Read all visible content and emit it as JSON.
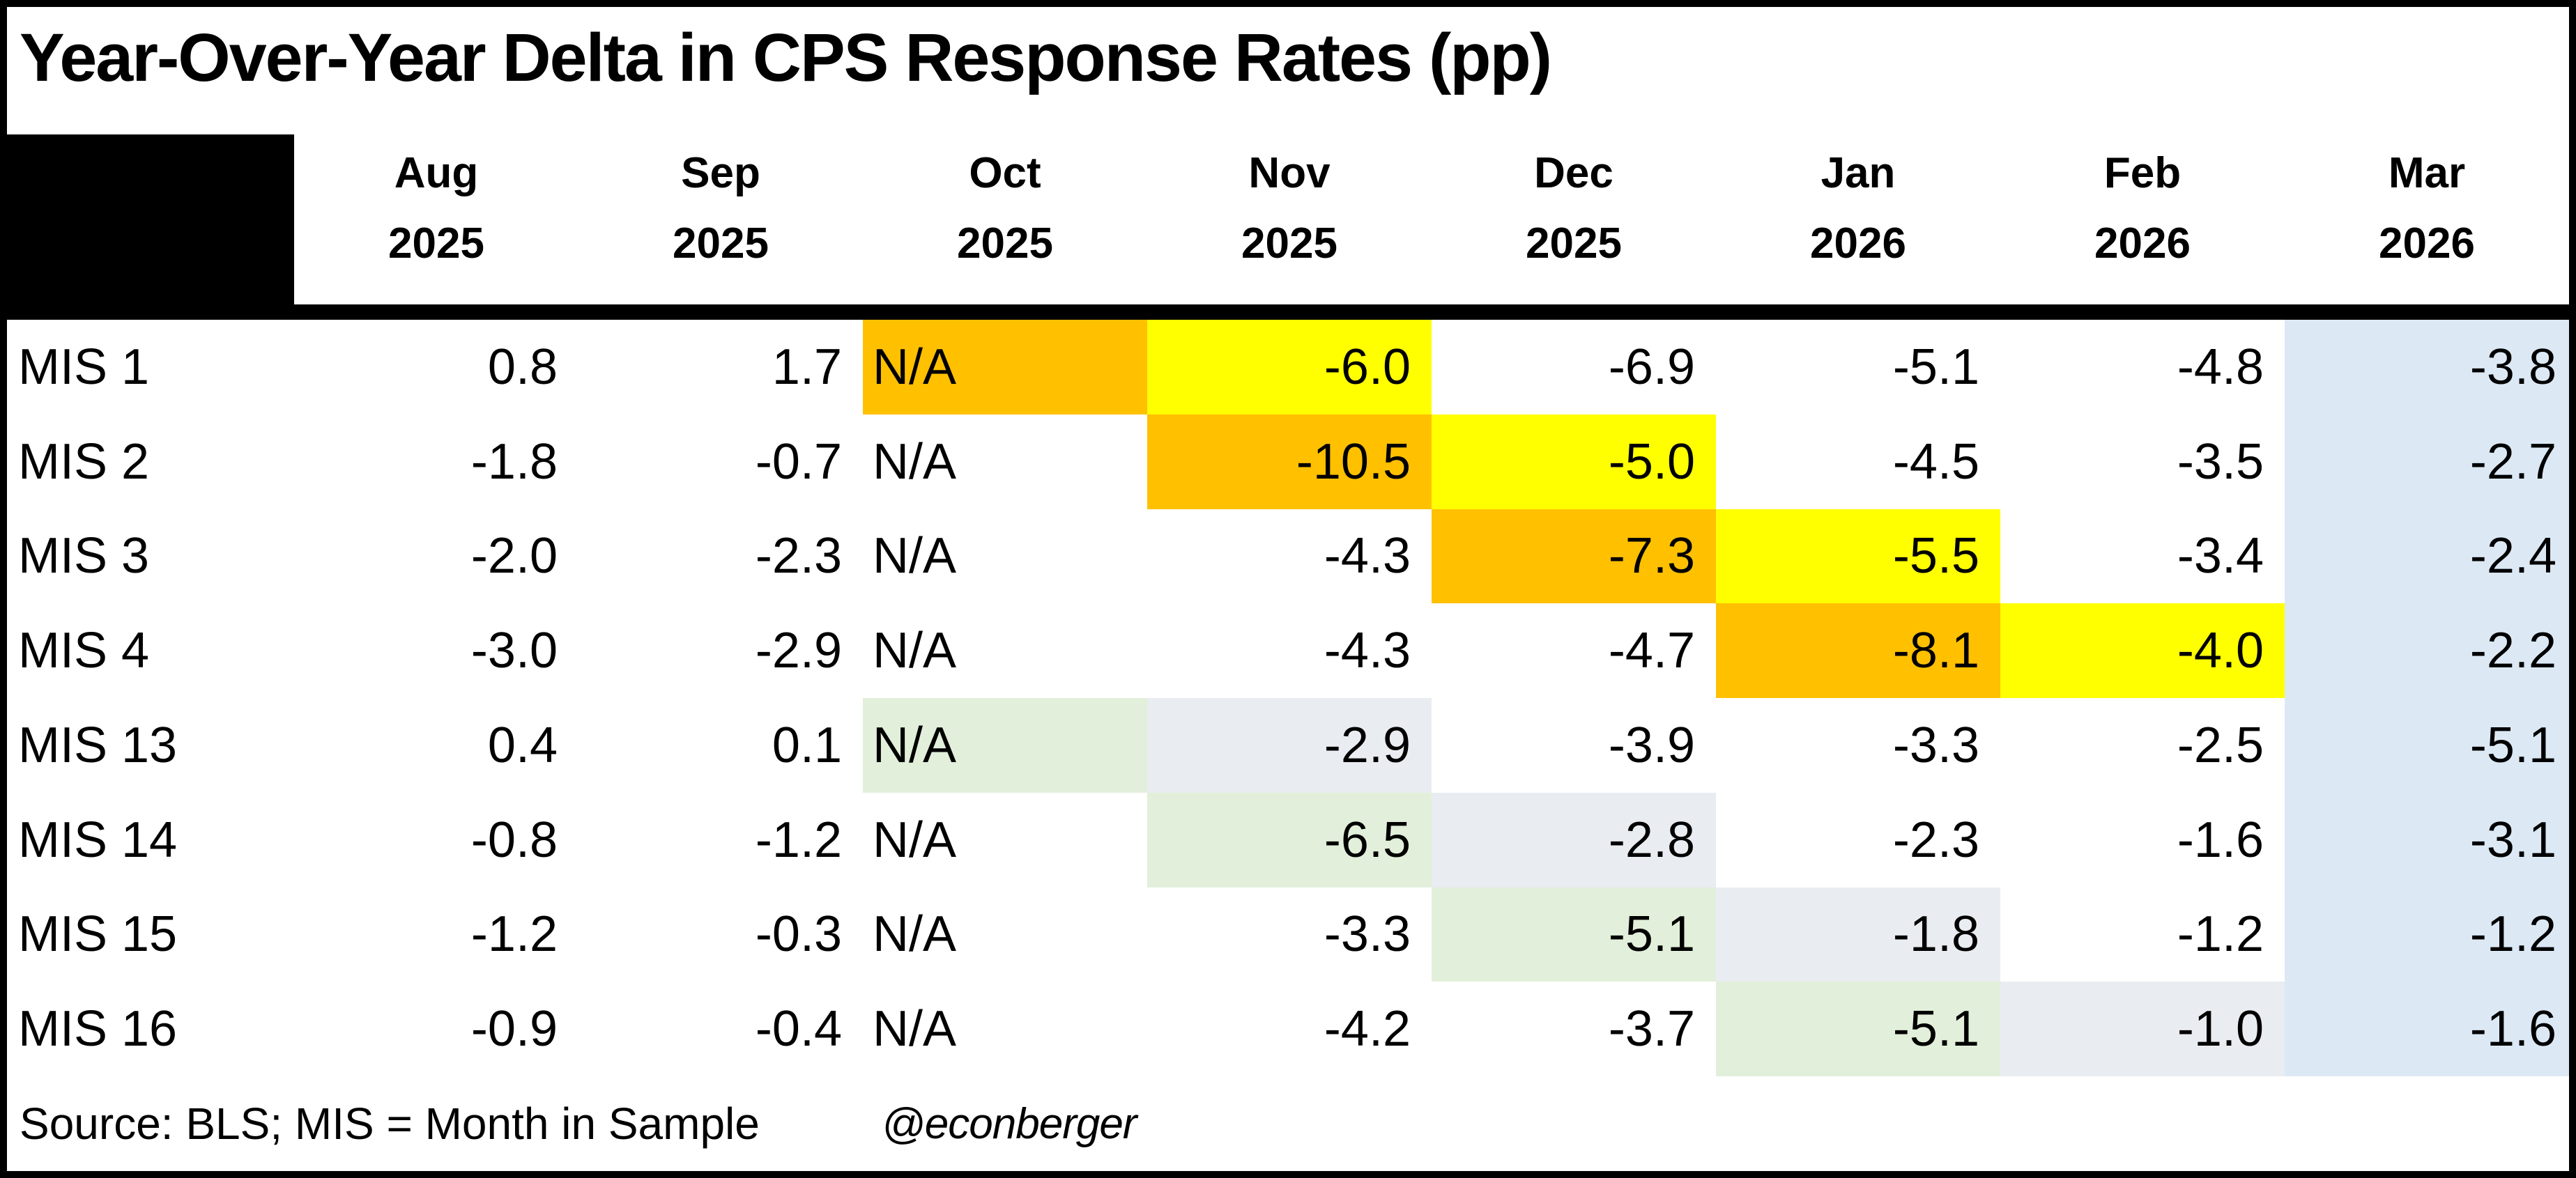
{
  "title": "Year-Over-Year Delta in CPS Response Rates (pp)",
  "footer": {
    "source": "Source: BLS; MIS = Month in Sample",
    "handle": "@econberger"
  },
  "colors": {
    "white": "#FFFFFF",
    "orange": "#FFC000",
    "yellow": "#FFFF00",
    "green": "#E2EFDA",
    "gray": "#E9ECF0",
    "blue": "#DCE9F5",
    "header_corner": "#000000",
    "border": "#000000"
  },
  "table": {
    "columns": [
      {
        "month": "Aug",
        "year": "2025"
      },
      {
        "month": "Sep",
        "year": "2025"
      },
      {
        "month": "Oct",
        "year": "2025"
      },
      {
        "month": "Nov",
        "year": "2025"
      },
      {
        "month": "Dec",
        "year": "2025"
      },
      {
        "month": "Jan",
        "year": "2026"
      },
      {
        "month": "Feb",
        "year": "2026"
      },
      {
        "month": "Mar",
        "year": "2026"
      }
    ],
    "rows": [
      {
        "label": "MIS 1",
        "cells": [
          {
            "v": "0.8",
            "bg": "white"
          },
          {
            "v": "1.7",
            "bg": "white"
          },
          {
            "v": "N/A",
            "bg": "orange"
          },
          {
            "v": "-6.0",
            "bg": "yellow"
          },
          {
            "v": "-6.9",
            "bg": "white"
          },
          {
            "v": "-5.1",
            "bg": "white"
          },
          {
            "v": "-4.8",
            "bg": "white"
          },
          {
            "v": "-3.8",
            "bg": "blue"
          }
        ]
      },
      {
        "label": "MIS 2",
        "cells": [
          {
            "v": "-1.8",
            "bg": "white"
          },
          {
            "v": "-0.7",
            "bg": "white"
          },
          {
            "v": "N/A",
            "bg": "white"
          },
          {
            "v": "-10.5",
            "bg": "orange"
          },
          {
            "v": "-5.0",
            "bg": "yellow"
          },
          {
            "v": "-4.5",
            "bg": "white"
          },
          {
            "v": "-3.5",
            "bg": "white"
          },
          {
            "v": "-2.7",
            "bg": "blue"
          }
        ]
      },
      {
        "label": "MIS 3",
        "cells": [
          {
            "v": "-2.0",
            "bg": "white"
          },
          {
            "v": "-2.3",
            "bg": "white"
          },
          {
            "v": "N/A",
            "bg": "white"
          },
          {
            "v": "-4.3",
            "bg": "white"
          },
          {
            "v": "-7.3",
            "bg": "orange"
          },
          {
            "v": "-5.5",
            "bg": "yellow"
          },
          {
            "v": "-3.4",
            "bg": "white"
          },
          {
            "v": "-2.4",
            "bg": "blue"
          }
        ]
      },
      {
        "label": "MIS 4",
        "cells": [
          {
            "v": "-3.0",
            "bg": "white"
          },
          {
            "v": "-2.9",
            "bg": "white"
          },
          {
            "v": "N/A",
            "bg": "white"
          },
          {
            "v": "-4.3",
            "bg": "white"
          },
          {
            "v": "-4.7",
            "bg": "white"
          },
          {
            "v": "-8.1",
            "bg": "orange"
          },
          {
            "v": "-4.0",
            "bg": "yellow"
          },
          {
            "v": "-2.2",
            "bg": "blue"
          }
        ]
      },
      {
        "label": "MIS 13",
        "cells": [
          {
            "v": "0.4",
            "bg": "white"
          },
          {
            "v": "0.1",
            "bg": "white"
          },
          {
            "v": "N/A",
            "bg": "green"
          },
          {
            "v": "-2.9",
            "bg": "gray"
          },
          {
            "v": "-3.9",
            "bg": "white"
          },
          {
            "v": "-3.3",
            "bg": "white"
          },
          {
            "v": "-2.5",
            "bg": "white"
          },
          {
            "v": "-5.1",
            "bg": "blue"
          }
        ]
      },
      {
        "label": "MIS 14",
        "cells": [
          {
            "v": "-0.8",
            "bg": "white"
          },
          {
            "v": "-1.2",
            "bg": "white"
          },
          {
            "v": "N/A",
            "bg": "white"
          },
          {
            "v": "-6.5",
            "bg": "green"
          },
          {
            "v": "-2.8",
            "bg": "gray"
          },
          {
            "v": "-2.3",
            "bg": "white"
          },
          {
            "v": "-1.6",
            "bg": "white"
          },
          {
            "v": "-3.1",
            "bg": "blue"
          }
        ]
      },
      {
        "label": "MIS 15",
        "cells": [
          {
            "v": "-1.2",
            "bg": "white"
          },
          {
            "v": "-0.3",
            "bg": "white"
          },
          {
            "v": "N/A",
            "bg": "white"
          },
          {
            "v": "-3.3",
            "bg": "white"
          },
          {
            "v": "-5.1",
            "bg": "green"
          },
          {
            "v": "-1.8",
            "bg": "gray"
          },
          {
            "v": "-1.2",
            "bg": "white"
          },
          {
            "v": "-1.2",
            "bg": "blue"
          }
        ]
      },
      {
        "label": "MIS 16",
        "cells": [
          {
            "v": "-0.9",
            "bg": "white"
          },
          {
            "v": "-0.4",
            "bg": "white"
          },
          {
            "v": "N/A",
            "bg": "white"
          },
          {
            "v": "-4.2",
            "bg": "white"
          },
          {
            "v": "-3.7",
            "bg": "white"
          },
          {
            "v": "-5.1",
            "bg": "green"
          },
          {
            "v": "-1.0",
            "bg": "gray"
          },
          {
            "v": "-1.6",
            "bg": "blue"
          }
        ]
      }
    ]
  },
  "chart_data": {
    "type": "table",
    "title": "Year-Over-Year Delta in CPS Response Rates (pp)",
    "unit": "percentage points",
    "columns": [
      "Aug 2025",
      "Sep 2025",
      "Oct 2025",
      "Nov 2025",
      "Dec 2025",
      "Jan 2026",
      "Feb 2026",
      "Mar 2026"
    ],
    "row_labels": [
      "MIS 1",
      "MIS 2",
      "MIS 3",
      "MIS 4",
      "MIS 13",
      "MIS 14",
      "MIS 15",
      "MIS 16"
    ],
    "values": [
      [
        0.8,
        1.7,
        "N/A",
        -6.0,
        -6.9,
        -5.1,
        -4.8,
        -3.8
      ],
      [
        -1.8,
        -0.7,
        "N/A",
        -10.5,
        -5.0,
        -4.5,
        -3.5,
        -2.7
      ],
      [
        -2.0,
        -2.3,
        "N/A",
        -4.3,
        -7.3,
        -5.5,
        -3.4,
        -2.4
      ],
      [
        -3.0,
        -2.9,
        "N/A",
        -4.3,
        -4.7,
        -8.1,
        -4.0,
        -2.2
      ],
      [
        0.4,
        0.1,
        "N/A",
        -2.9,
        -3.9,
        -3.3,
        -2.5,
        -5.1
      ],
      [
        -0.8,
        -1.2,
        "N/A",
        -6.5,
        -2.8,
        -2.3,
        -1.6,
        -3.1
      ],
      [
        -1.2,
        -0.3,
        "N/A",
        -3.3,
        -5.1,
        -1.8,
        -1.2,
        -1.2
      ],
      [
        -0.9,
        -0.4,
        "N/A",
        -4.2,
        -3.7,
        -5.1,
        -1.0,
        -1.6
      ]
    ],
    "cell_colors": [
      [
        "white",
        "white",
        "orange",
        "yellow",
        "white",
        "white",
        "white",
        "blue"
      ],
      [
        "white",
        "white",
        "white",
        "orange",
        "yellow",
        "white",
        "white",
        "blue"
      ],
      [
        "white",
        "white",
        "white",
        "white",
        "orange",
        "yellow",
        "white",
        "blue"
      ],
      [
        "white",
        "white",
        "white",
        "white",
        "white",
        "orange",
        "yellow",
        "blue"
      ],
      [
        "white",
        "white",
        "green",
        "gray",
        "white",
        "white",
        "white",
        "blue"
      ],
      [
        "white",
        "white",
        "white",
        "green",
        "gray",
        "white",
        "white",
        "blue"
      ],
      [
        "white",
        "white",
        "white",
        "white",
        "green",
        "gray",
        "white",
        "blue"
      ],
      [
        "white",
        "white",
        "white",
        "white",
        "white",
        "green",
        "gray",
        "blue"
      ]
    ],
    "legend_position": "none",
    "grid": false,
    "source_note": "Source: BLS; MIS = Month in Sample"
  }
}
